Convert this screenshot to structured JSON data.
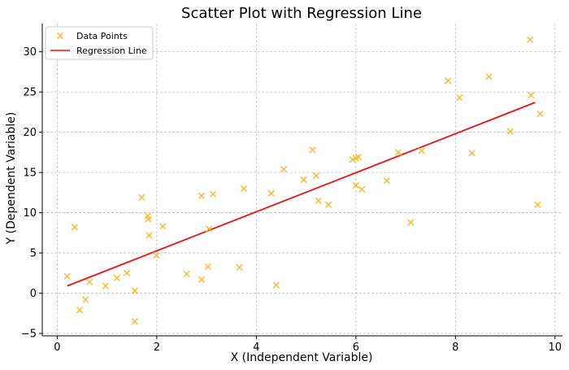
{
  "chart_data": {
    "type": "scatter",
    "title": "Scatter Plot with Regression Line",
    "xlabel": "X (Independent Variable)",
    "ylabel": "Y (Dependent Variable)",
    "xlim": [
      -0.3,
      10.15
    ],
    "ylim": [
      -5.3,
      33.5
    ],
    "xticks": [
      0,
      2,
      4,
      6,
      8,
      10
    ],
    "yticks": [
      -5,
      0,
      5,
      10,
      15,
      20,
      25,
      30
    ],
    "grid": true,
    "legend_position": "top-left",
    "colors": {
      "points": "#FBB829",
      "line": "#EE1111",
      "grid": "#bfbfbf"
    },
    "series": [
      {
        "name": "Data Points",
        "kind": "scatter",
        "marker": "x",
        "points": [
          [
            0.2,
            2.1
          ],
          [
            0.35,
            8.2
          ],
          [
            0.45,
            -2.1
          ],
          [
            0.57,
            -0.8
          ],
          [
            0.65,
            1.4
          ],
          [
            0.97,
            0.9
          ],
          [
            1.2,
            1.9
          ],
          [
            1.4,
            2.5
          ],
          [
            1.56,
            0.3
          ],
          [
            1.56,
            -3.5
          ],
          [
            1.7,
            11.9
          ],
          [
            1.82,
            9.6
          ],
          [
            1.83,
            9.2
          ],
          [
            1.85,
            7.2
          ],
          [
            1.99,
            4.7
          ],
          [
            2.12,
            8.3
          ],
          [
            2.6,
            2.4
          ],
          [
            2.9,
            12.1
          ],
          [
            2.9,
            1.7
          ],
          [
            3.03,
            3.3
          ],
          [
            3.05,
            8.0
          ],
          [
            3.13,
            12.3
          ],
          [
            3.66,
            3.2
          ],
          [
            3.75,
            13.0
          ],
          [
            4.3,
            12.4
          ],
          [
            4.4,
            1.0
          ],
          [
            4.55,
            15.4
          ],
          [
            4.95,
            14.1
          ],
          [
            5.13,
            17.8
          ],
          [
            5.2,
            14.6
          ],
          [
            5.25,
            11.5
          ],
          [
            5.45,
            11.0
          ],
          [
            5.93,
            16.6
          ],
          [
            6.0,
            16.8
          ],
          [
            6.0,
            13.4
          ],
          [
            6.05,
            16.9
          ],
          [
            6.12,
            12.9
          ],
          [
            6.62,
            14.0
          ],
          [
            6.85,
            17.5
          ],
          [
            7.1,
            8.8
          ],
          [
            7.32,
            17.7
          ],
          [
            7.85,
            26.4
          ],
          [
            8.08,
            24.3
          ],
          [
            8.33,
            17.4
          ],
          [
            8.67,
            26.9
          ],
          [
            9.1,
            20.1
          ],
          [
            9.5,
            31.5
          ],
          [
            9.52,
            24.6
          ],
          [
            9.65,
            11.0
          ],
          [
            9.7,
            22.3
          ]
        ]
      },
      {
        "name": "Regression Line",
        "kind": "line",
        "points": [
          [
            0.2,
            0.9
          ],
          [
            9.6,
            23.7
          ]
        ]
      }
    ]
  }
}
